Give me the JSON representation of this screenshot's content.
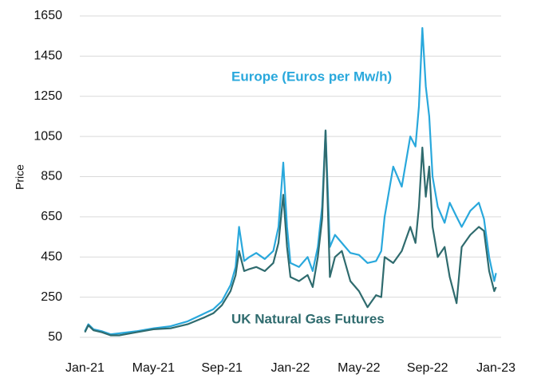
{
  "chart_data": {
    "type": "line",
    "ylabel": "Price",
    "x": [
      0,
      0.2,
      0.5,
      1,
      1.5,
      2,
      3,
      4,
      5,
      6,
      7,
      7.5,
      8,
      8.5,
      8.8,
      9.0,
      9.3,
      9.6,
      10,
      10.5,
      11,
      11.3,
      11.58,
      11.8,
      12,
      12.5,
      13,
      13.3,
      13.6,
      13.85,
      14.05,
      14.3,
      14.6,
      15,
      15.5,
      16,
      16.5,
      17,
      17.3,
      17.5,
      18,
      18.5,
      19,
      19.3,
      19.5,
      19.7,
      19.9,
      20.1,
      20.3,
      20.6,
      21,
      21.3,
      21.7,
      22,
      22.5,
      23,
      23.3,
      23.6,
      23.9,
      24
    ],
    "xlim": [
      -0.3,
      24.3
    ],
    "xticks": [
      {
        "value": 0,
        "label": "Jan-21"
      },
      {
        "value": 4,
        "label": "May-21"
      },
      {
        "value": 8,
        "label": "Sep-21"
      },
      {
        "value": 12,
        "label": "Jan-22"
      },
      {
        "value": 16,
        "label": "May-22"
      },
      {
        "value": 20,
        "label": "Sep-22"
      },
      {
        "value": 24,
        "label": "Jan-23"
      }
    ],
    "ylim": [
      50,
      1650
    ],
    "yticks": [
      50,
      250,
      450,
      650,
      850,
      1050,
      1250,
      1450,
      1650
    ],
    "grid": true,
    "series": [
      {
        "name": "Europe (Euros per Mw/h)",
        "color": "#29a8dc",
        "values": [
          80,
          115,
          90,
          80,
          65,
          70,
          80,
          95,
          105,
          130,
          170,
          190,
          230,
          310,
          400,
          600,
          430,
          450,
          470,
          440,
          480,
          600,
          920,
          600,
          420,
          400,
          450,
          380,
          500,
          700,
          1080,
          500,
          560,
          520,
          470,
          460,
          420,
          430,
          480,
          650,
          900,
          800,
          1050,
          1000,
          1200,
          1590,
          1300,
          1150,
          850,
          700,
          620,
          720,
          650,
          600,
          680,
          720,
          640,
          450,
          330,
          370
        ]
      },
      {
        "name": "UK Natural Gas Futures",
        "color": "#2f6b6e",
        "values": [
          75,
          110,
          85,
          75,
          60,
          60,
          75,
          90,
          95,
          115,
          150,
          170,
          210,
          280,
          360,
          480,
          380,
          390,
          400,
          380,
          420,
          520,
          760,
          500,
          350,
          330,
          360,
          300,
          450,
          640,
          1080,
          350,
          450,
          480,
          330,
          280,
          200,
          260,
          250,
          450,
          420,
          480,
          600,
          520,
          700,
          995,
          750,
          900,
          600,
          450,
          500,
          350,
          220,
          500,
          560,
          600,
          580,
          380,
          280,
          300
        ]
      }
    ]
  }
}
